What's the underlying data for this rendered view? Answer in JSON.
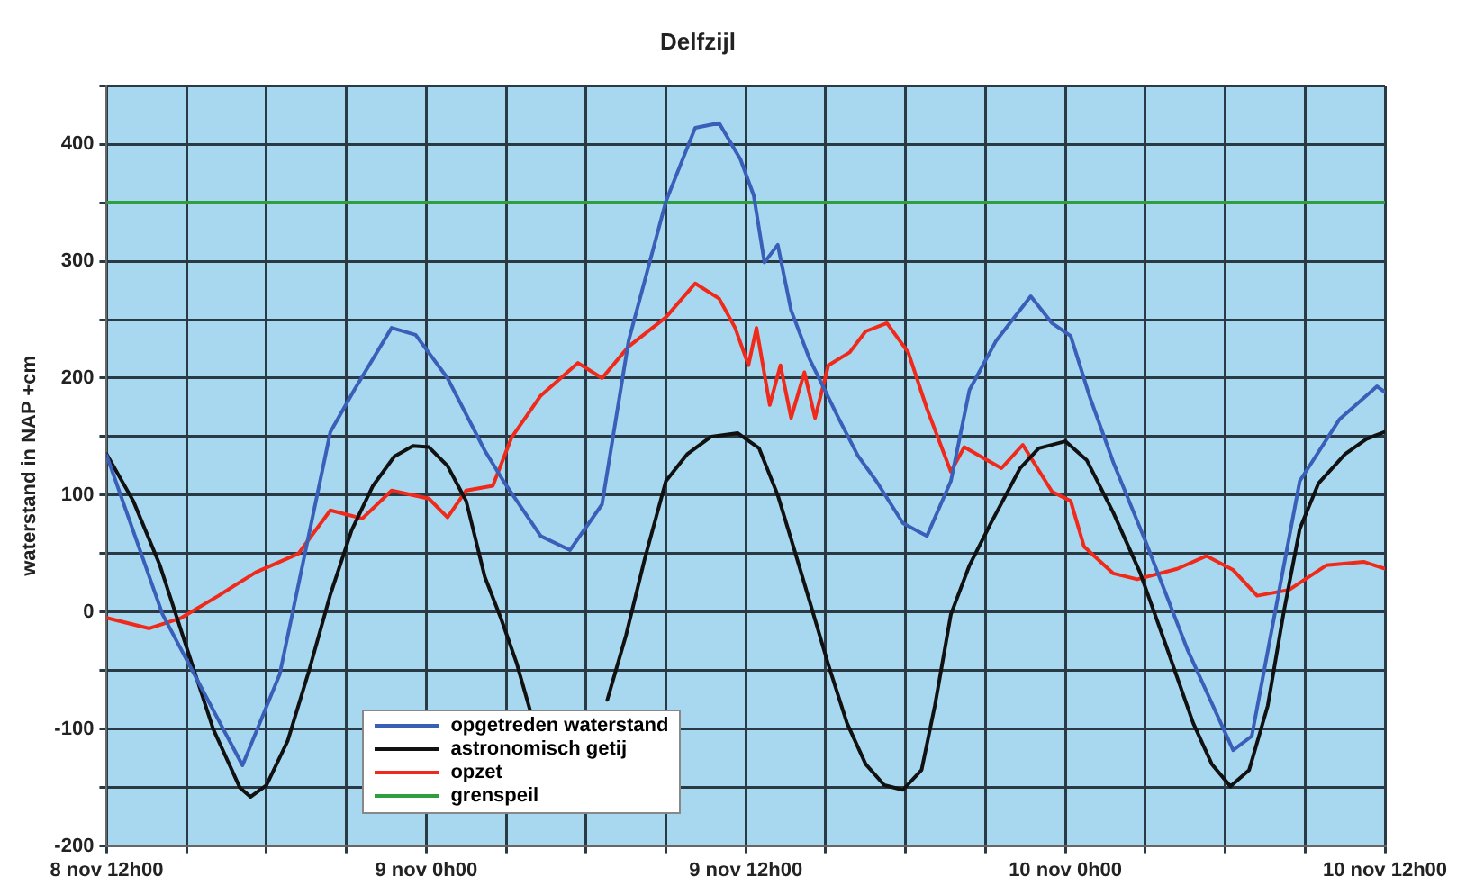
{
  "chart_data": {
    "type": "line",
    "title": "Delfzijl",
    "ylabel": "waterstand in NAP +cm",
    "xlim": [
      "--11-08T12:00",
      "--11-10T12:00"
    ],
    "xticks": [
      {
        "value": "--11-08T12:00",
        "label": "8 nov 12h00"
      },
      {
        "value": "--11-08T15:00",
        "label": null
      },
      {
        "value": "--11-08T18:00",
        "label": null
      },
      {
        "value": "--11-08T21:00",
        "label": null
      },
      {
        "value": "--11-09T00:00",
        "label": "9 nov 0h00"
      },
      {
        "value": "--11-09T03:00",
        "label": null
      },
      {
        "value": "--11-09T06:00",
        "label": null
      },
      {
        "value": "--11-09T09:00",
        "label": null
      },
      {
        "value": "--11-09T12:00",
        "label": "9 nov 12h00"
      },
      {
        "value": "--11-09T15:00",
        "label": null
      },
      {
        "value": "--11-09T18:00",
        "label": null
      },
      {
        "value": "--11-09T21:00",
        "label": null
      },
      {
        "value": "--11-10T00:00",
        "label": "10 nov 0h00"
      },
      {
        "value": "--11-10T03:00",
        "label": null
      },
      {
        "value": "--11-10T06:00",
        "label": null
      },
      {
        "value": "--11-10T09:00",
        "label": null
      },
      {
        "value": "--11-10T12:00",
        "label": "10 nov 12h00"
      }
    ],
    "ylim": [
      -200,
      450
    ],
    "yticks": [
      -200,
      {
        "value": -150,
        "label": null
      },
      -100,
      {
        "value": -50,
        "label": null
      },
      0,
      {
        "value": 50,
        "label": null
      },
      100,
      {
        "value": 150,
        "label": null
      },
      200,
      {
        "value": 250,
        "label": null
      },
      300,
      {
        "value": 350,
        "label": null
      },
      400,
      {
        "value": 450,
        "label": null
      }
    ],
    "grid": true,
    "legend": "bottom left",
    "marker": "none",
    "line_style": "solid",
    "series": [
      {
        "name": "opgetreden waterstand",
        "color": "#3a5fb8",
        "x": [
          "--11-08T12:00",
          "--11-08T14:06",
          "--11-08T17:06",
          "--11-08T18:30",
          "--11-08T20:24",
          "--11-08T21:18",
          "--11-08T22:42",
          "--11-08T23:36",
          "--11-09T00:48",
          "--11-09T02:12",
          "--11-09T02:54",
          "--11-09T04:18",
          "--11-09T05:24",
          "--11-09T06:36",
          "--11-09T07:36",
          "--11-09T09:00",
          "--11-09T10:06",
          "--11-09T11:00",
          "--11-09T11:48",
          "--11-09T12:18",
          "--11-09T12:42",
          "--11-09T13:12",
          "--11-09T13:42",
          "--11-09T14:24",
          "--11-09T15:30",
          "--11-09T16:12",
          "--11-09T16:54",
          "--11-09T17:54",
          "--11-09T18:48",
          "--11-09T19:42",
          "--11-09T20:24",
          "--11-09T21:24",
          "--11-09T22:42",
          "--11-09T23:30",
          "--11-10T00:12",
          "--11-10T00:54",
          "--11-10T01:48",
          "--11-10T03:00",
          "--11-10T04:36",
          "--11-10T06:18",
          "--11-10T07:00",
          "--11-10T08:48",
          "--11-10T10:18",
          "--11-10T11:42",
          "--11-10T12:00"
        ],
        "values": [
          134,
          -2,
          -131,
          -53,
          154,
          190,
          243,
          237,
          200,
          138,
          112,
          65,
          53,
          92,
          232,
          351,
          414,
          418,
          387,
          356,
          299,
          314,
          258,
          216,
          165,
          134,
          112,
          76,
          65,
          112,
          190,
          232,
          270,
          247,
          236,
          185,
          128,
          61,
          -33,
          -118,
          -106,
          112,
          165,
          193,
          188
        ]
      },
      {
        "name": "astronomisch getij",
        "color": "#111111",
        "x": [
          "--11-08T12:00",
          "--11-08T13:00",
          "--11-08T14:00",
          "--11-08T15:00",
          "--11-08T16:00",
          "--11-08T17:00",
          "--11-08T17:24",
          "--11-08T18:00",
          "--11-08T18:48",
          "--11-08T19:36",
          "--11-08T20:24",
          "--11-08T21:12",
          "--11-08T22:00",
          "--11-08T22:48",
          "--11-08T23:30",
          "--11-09T00:06",
          "--11-09T00:48",
          "--11-09T01:30",
          "--11-09T02:12",
          "--11-09T02:48",
          "--11-09T03:24",
          "--11-09T03:54",
          "--11-09T04:30",
          "--11-09T06:48",
          "--11-09T07:30",
          "--11-09T08:12",
          "--11-09T09:00",
          "--11-09T09:48",
          "--11-09T10:42",
          "--11-09T11:42",
          "--11-09T12:30",
          "--11-09T13:12",
          "--11-09T13:48",
          "--11-09T14:24",
          "--11-09T15:06",
          "--11-09T15:48",
          "--11-09T16:30",
          "--11-09T17:12",
          "--11-09T17:54",
          "--11-09T18:36",
          "--11-09T19:06",
          "--11-09T19:42",
          "--11-09T20:24",
          "--11-09T21:12",
          "--11-09T22:18",
          "--11-09T23:00",
          "--11-10T00:00",
          "--11-10T00:48",
          "--11-10T01:48",
          "--11-10T02:48",
          "--11-10T03:48",
          "--11-10T04:48",
          "--11-10T05:30",
          "--11-10T06:12",
          "--11-10T06:54",
          "--11-10T07:36",
          "--11-10T08:12",
          "--11-10T08:48",
          "--11-10T09:30",
          "--11-10T10:30",
          "--11-10T11:18",
          "--11-10T12:00"
        ],
        "values": [
          135,
          95,
          40,
          -30,
          -100,
          -150,
          -158,
          -148,
          -110,
          -50,
          15,
          70,
          108,
          133,
          142,
          141,
          125,
          95,
          30,
          -5,
          -44,
          -84,
          null,
          -75,
          -20,
          45,
          112,
          135,
          150,
          153,
          140,
          100,
          55,
          9,
          -45,
          -95,
          -130,
          -148,
          -152,
          -135,
          -80,
          -2,
          40,
          76,
          123,
          140,
          146,
          130,
          85,
          34,
          -30,
          -95,
          -130,
          -149,
          -135,
          -80,
          0,
          71,
          110,
          135,
          148,
          154
        ]
      },
      {
        "name": "opzet",
        "color": "#f02a1a",
        "x": [
          "--11-08T12:00",
          "--11-08T13:36",
          "--11-08T14:48",
          "--11-08T16:12",
          "--11-08T17:36",
          "--11-08T19:12",
          "--11-08T20:24",
          "--11-08T21:36",
          "--11-08T22:42",
          "--11-09T00:06",
          "--11-09T00:48",
          "--11-09T01:30",
          "--11-09T02:30",
          "--11-09T03:12",
          "--11-09T04:18",
          "--11-09T05:42",
          "--11-09T06:36",
          "--11-09T07:36",
          "--11-09T09:00",
          "--11-09T10:06",
          "--11-09T11:00",
          "--11-09T11:36",
          "--11-09T12:06",
          "--11-09T12:24",
          "--11-09T12:54",
          "--11-09T13:18",
          "--11-09T13:42",
          "--11-09T14:12",
          "--11-09T14:36",
          "--11-09T15:06",
          "--11-09T15:54",
          "--11-09T16:30",
          "--11-09T17:18",
          "--11-09T18:06",
          "--11-09T18:48",
          "--11-09T19:42",
          "--11-09T20:12",
          "--11-09T21:36",
          "--11-09T22:24",
          "--11-09T23:30",
          "--11-10T00:12",
          "--11-10T00:42",
          "--11-10T01:48",
          "--11-10T02:42",
          "--11-10T04:12",
          "--11-10T05:18",
          "--11-10T06:18",
          "--11-10T07:12",
          "--11-10T08:24",
          "--11-10T09:48",
          "--11-10T11:12",
          "--11-10T12:00"
        ],
        "values": [
          -5,
          -14,
          -5,
          14,
          34,
          50,
          87,
          80,
          104,
          97,
          81,
          104,
          108,
          149,
          185,
          213,
          200,
          227,
          252,
          281,
          268,
          243,
          211,
          243,
          177,
          211,
          166,
          205,
          166,
          211,
          222,
          240,
          247,
          222,
          174,
          120,
          141,
          123,
          143,
          103,
          95,
          56,
          33,
          28,
          37,
          48,
          36,
          14,
          19,
          40,
          43,
          37
        ]
      },
      {
        "name": "grenspeil",
        "color": "#2e9e3e",
        "x": [
          "--11-08T12:00",
          "--11-10T12:00"
        ],
        "values": [
          350,
          350
        ]
      }
    ]
  }
}
